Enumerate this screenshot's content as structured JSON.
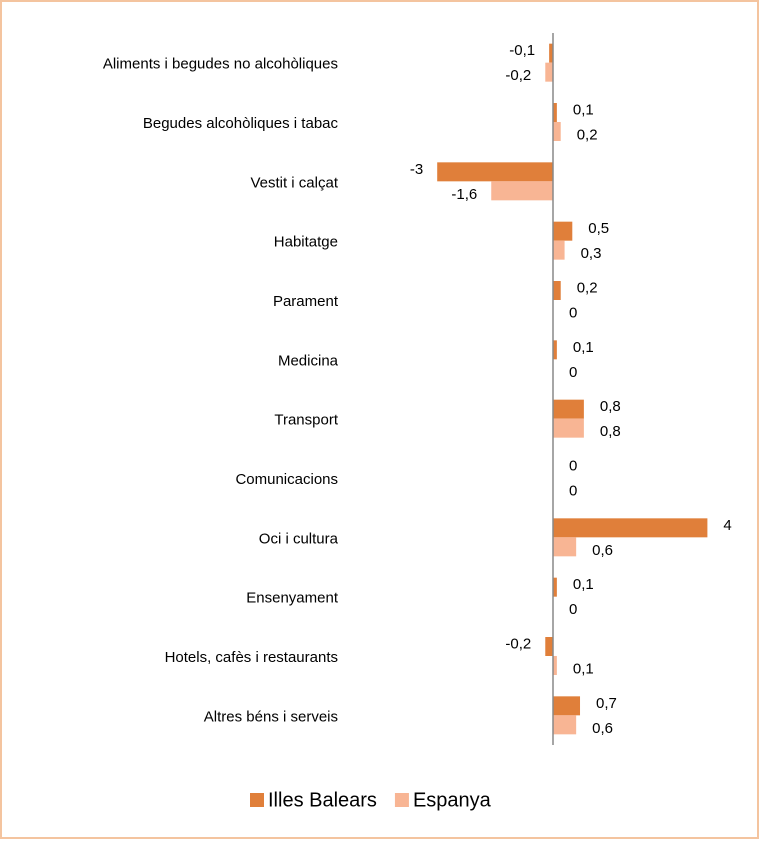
{
  "chart_data": {
    "type": "hbar",
    "categories": [
      "Aliments i begudes no alcohòliques",
      "Begudes alcohòliques i tabac",
      "Vestit i calçat",
      "Habitatge",
      "Parament",
      "Medicina",
      "Transport",
      "Comunicacions",
      "Oci i cultura",
      "Ensenyament",
      "Hotels, cafès i restaurants",
      "Altres béns i serveis"
    ],
    "series": [
      {
        "name": "Illes Balears",
        "color": "#e07f3a",
        "values": [
          -0.1,
          0.1,
          -3,
          0.5,
          0.2,
          0.1,
          0.8,
          0,
          4,
          0.1,
          -0.2,
          0.7
        ],
        "value_labels": [
          "-0,1",
          "0,1",
          "-3",
          "0,5",
          "0,2",
          "0,1",
          "0,8",
          "0",
          "4",
          "0,1",
          "-0,2",
          "0,7"
        ]
      },
      {
        "name": "Espanya",
        "color": "#f8b594",
        "values": [
          -0.2,
          0.2,
          -1.6,
          0.3,
          0,
          0,
          0.8,
          0,
          0.6,
          0,
          0.1,
          0.6
        ],
        "value_labels": [
          "-0,2",
          "0,2",
          "-1,6",
          "0,3",
          "0",
          "0",
          "0,8",
          "0",
          "0,6",
          "0",
          "0,1",
          "0,6"
        ]
      }
    ],
    "xlim": [
      -5,
      5
    ]
  }
}
